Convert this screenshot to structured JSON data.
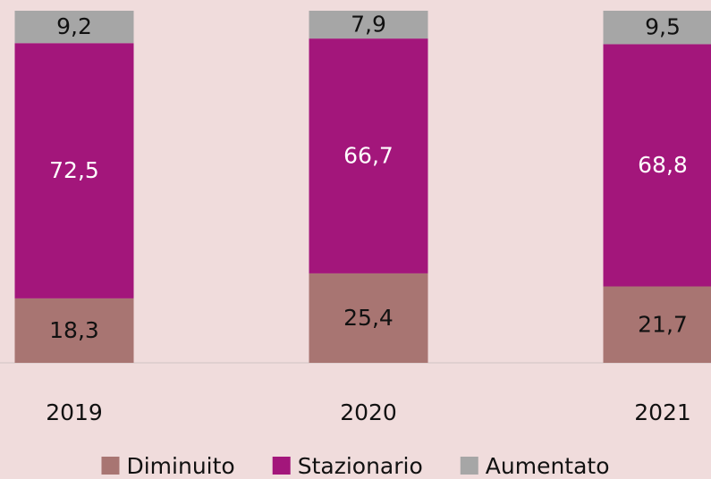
{
  "chart_data": {
    "type": "bar",
    "stacked": true,
    "categories": [
      "2019",
      "2020",
      "2021"
    ],
    "series": [
      {
        "name": "Diminuito",
        "color": "#a87572",
        "values": [
          18.3,
          25.4,
          21.7
        ],
        "value_labels": [
          "18,3",
          "25,4",
          "21,7"
        ]
      },
      {
        "name": "Stazionario",
        "color": "#a3167b",
        "values": [
          72.5,
          66.7,
          68.8
        ],
        "value_labels": [
          "72,5",
          "66,7",
          "68,8"
        ]
      },
      {
        "name": "Aumentato",
        "color": "#a6a6a6",
        "values": [
          9.2,
          7.9,
          9.5
        ],
        "value_labels": [
          "9,2",
          "7,9",
          "9,5"
        ]
      }
    ],
    "ylim": [
      0,
      100
    ],
    "legend": "bottom"
  }
}
